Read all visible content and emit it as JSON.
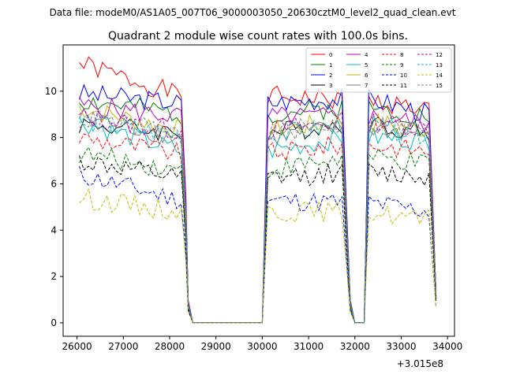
{
  "header": {
    "data_file": "Data file: modeM0/AS1A05_007T06_9000003050_20630cztM0_level2_quad_clean.evt"
  },
  "chart_data": {
    "type": "line",
    "title": "Quadrant 2 module wise count rates with 100.0s bins.",
    "xlabel": "",
    "ylabel": "",
    "x_offset_label": "+3.015e8",
    "xlim": [
      25700,
      34150
    ],
    "ylim": [
      -0.58,
      12.0
    ],
    "x_ticks": [
      26000,
      27000,
      28000,
      29000,
      30000,
      31000,
      32000,
      33000,
      34000
    ],
    "x_tick_labels": [
      "26000",
      "27000",
      "28000",
      "29000",
      "30000",
      "31000",
      "32000",
      "33000",
      "34000"
    ],
    "y_ticks": [
      0,
      2,
      4,
      6,
      8,
      10
    ],
    "y_tick_labels": [
      "0",
      "2",
      "4",
      "6",
      "8",
      "10"
    ],
    "grid": false,
    "legend_position": "top-right",
    "legend_columns": 4,
    "series": [
      {
        "name": "0",
        "color": "#ff0000",
        "dash": "solid",
        "base": [
          11.2,
          9.8,
          9.6,
          9.2
        ],
        "seed": 1
      },
      {
        "name": "1",
        "color": "#008000",
        "dash": "solid",
        "base": [
          9.6,
          9.0,
          9.3,
          8.9
        ],
        "seed": 2
      },
      {
        "name": "2",
        "color": "#0000ff",
        "dash": "solid",
        "base": [
          9.9,
          9.5,
          9.7,
          9.0
        ],
        "seed": 3
      },
      {
        "name": "3",
        "color": "#000000",
        "dash": "solid",
        "base": [
          8.6,
          8.2,
          8.6,
          8.2
        ],
        "seed": 4
      },
      {
        "name": "4",
        "color": "#bf00bf",
        "dash": "solid",
        "base": [
          9.4,
          8.9,
          8.9,
          8.6
        ],
        "seed": 5
      },
      {
        "name": "5",
        "color": "#00bfbf",
        "dash": "solid",
        "base": [
          8.7,
          7.4,
          8.0,
          7.9
        ],
        "seed": 6
      },
      {
        "name": "6",
        "color": "#bfbf00",
        "dash": "solid",
        "base": [
          9.3,
          8.3,
          8.7,
          8.3
        ],
        "seed": 7
      },
      {
        "name": "7",
        "color": "#808080",
        "dash": "solid",
        "base": [
          8.9,
          8.0,
          8.4,
          8.1
        ],
        "seed": 8
      },
      {
        "name": "8",
        "color": "#ff0000",
        "dash": "dashed",
        "base": [
          8.0,
          7.3,
          7.7,
          7.4
        ],
        "seed": 9
      },
      {
        "name": "9",
        "color": "#008000",
        "dash": "dashed",
        "base": [
          7.3,
          6.6,
          7.1,
          6.8
        ],
        "seed": 10
      },
      {
        "name": "10",
        "color": "#0000ff",
        "dash": "dashed",
        "base": [
          6.4,
          5.3,
          5.2,
          4.8
        ],
        "seed": 11
      },
      {
        "name": "11",
        "color": "#000000",
        "dash": "dashed",
        "base": [
          7.0,
          6.2,
          6.5,
          6.3
        ],
        "seed": 12
      },
      {
        "name": "12",
        "color": "#bf00bf",
        "dash": "dashed",
        "base": [
          8.9,
          8.3,
          8.7,
          8.4
        ],
        "seed": 13
      },
      {
        "name": "13",
        "color": "#00bfbf",
        "dash": "dashed",
        "base": [
          8.7,
          8.1,
          8.5,
          8.1
        ],
        "seed": 14
      },
      {
        "name": "14",
        "color": "#bfbf00",
        "dash": "dashed",
        "base": [
          5.4,
          4.8,
          4.8,
          4.4
        ],
        "seed": 15
      },
      {
        "name": "15",
        "color": "#808080",
        "dash": "dashed",
        "base": [
          8.8,
          8.2,
          8.6,
          8.3
        ],
        "seed": 16
      }
    ]
  }
}
